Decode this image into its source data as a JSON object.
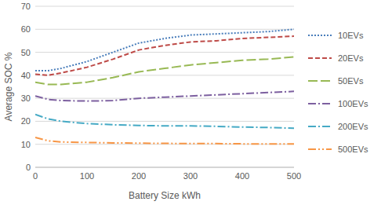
{
  "chart_data": {
    "type": "line",
    "x_label": "Battery Size kWh",
    "y_label": "Average SOC %",
    "x": [
      0,
      25,
      50,
      100,
      150,
      200,
      250,
      300,
      350,
      400,
      450,
      500
    ],
    "xlim": [
      0,
      500
    ],
    "xticks": [
      0,
      100,
      200,
      300,
      400,
      500
    ],
    "ylim": [
      0,
      70
    ],
    "yticks": [
      0,
      10,
      20,
      30,
      40,
      50,
      60,
      70
    ],
    "grid": true,
    "legend": "right",
    "series": [
      {
        "name": "10EVs",
        "color": "#4a7ebb",
        "line_style": "dotted",
        "values": [
          42,
          42,
          43,
          46,
          50,
          54,
          56,
          57.5,
          58,
          58.5,
          59,
          60
        ]
      },
      {
        "name": "20EVs",
        "color": "#be4b48",
        "line_style": "dashed",
        "values": [
          40.5,
          40,
          41,
          43.5,
          47,
          51,
          53,
          54.5,
          55,
          56,
          56.5,
          57
        ]
      },
      {
        "name": "50EVs",
        "color": "#98b954",
        "line_style": "long-dash",
        "values": [
          37,
          36,
          36,
          37,
          39,
          41.5,
          43,
          44.5,
          45.5,
          46.5,
          47,
          48
        ]
      },
      {
        "name": "100EVs",
        "color": "#7d60a0",
        "line_style": "dash-dot",
        "values": [
          31,
          29.5,
          29,
          28.8,
          29,
          30,
          30.5,
          31,
          31.5,
          32,
          32.5,
          33
        ]
      },
      {
        "name": "200EVs",
        "color": "#46aac5",
        "line_style": "dash-dot",
        "values": [
          23,
          21,
          20,
          19,
          18.5,
          18.2,
          18,
          18,
          17.8,
          17.5,
          17.3,
          17
        ]
      },
      {
        "name": "500EVs",
        "color": "#f79646",
        "line_style": "dash-dot-dot",
        "values": [
          13,
          11.5,
          11,
          10.8,
          10.6,
          10.5,
          10.4,
          10.3,
          10.3,
          10.2,
          10.2,
          10.2
        ]
      }
    ]
  }
}
